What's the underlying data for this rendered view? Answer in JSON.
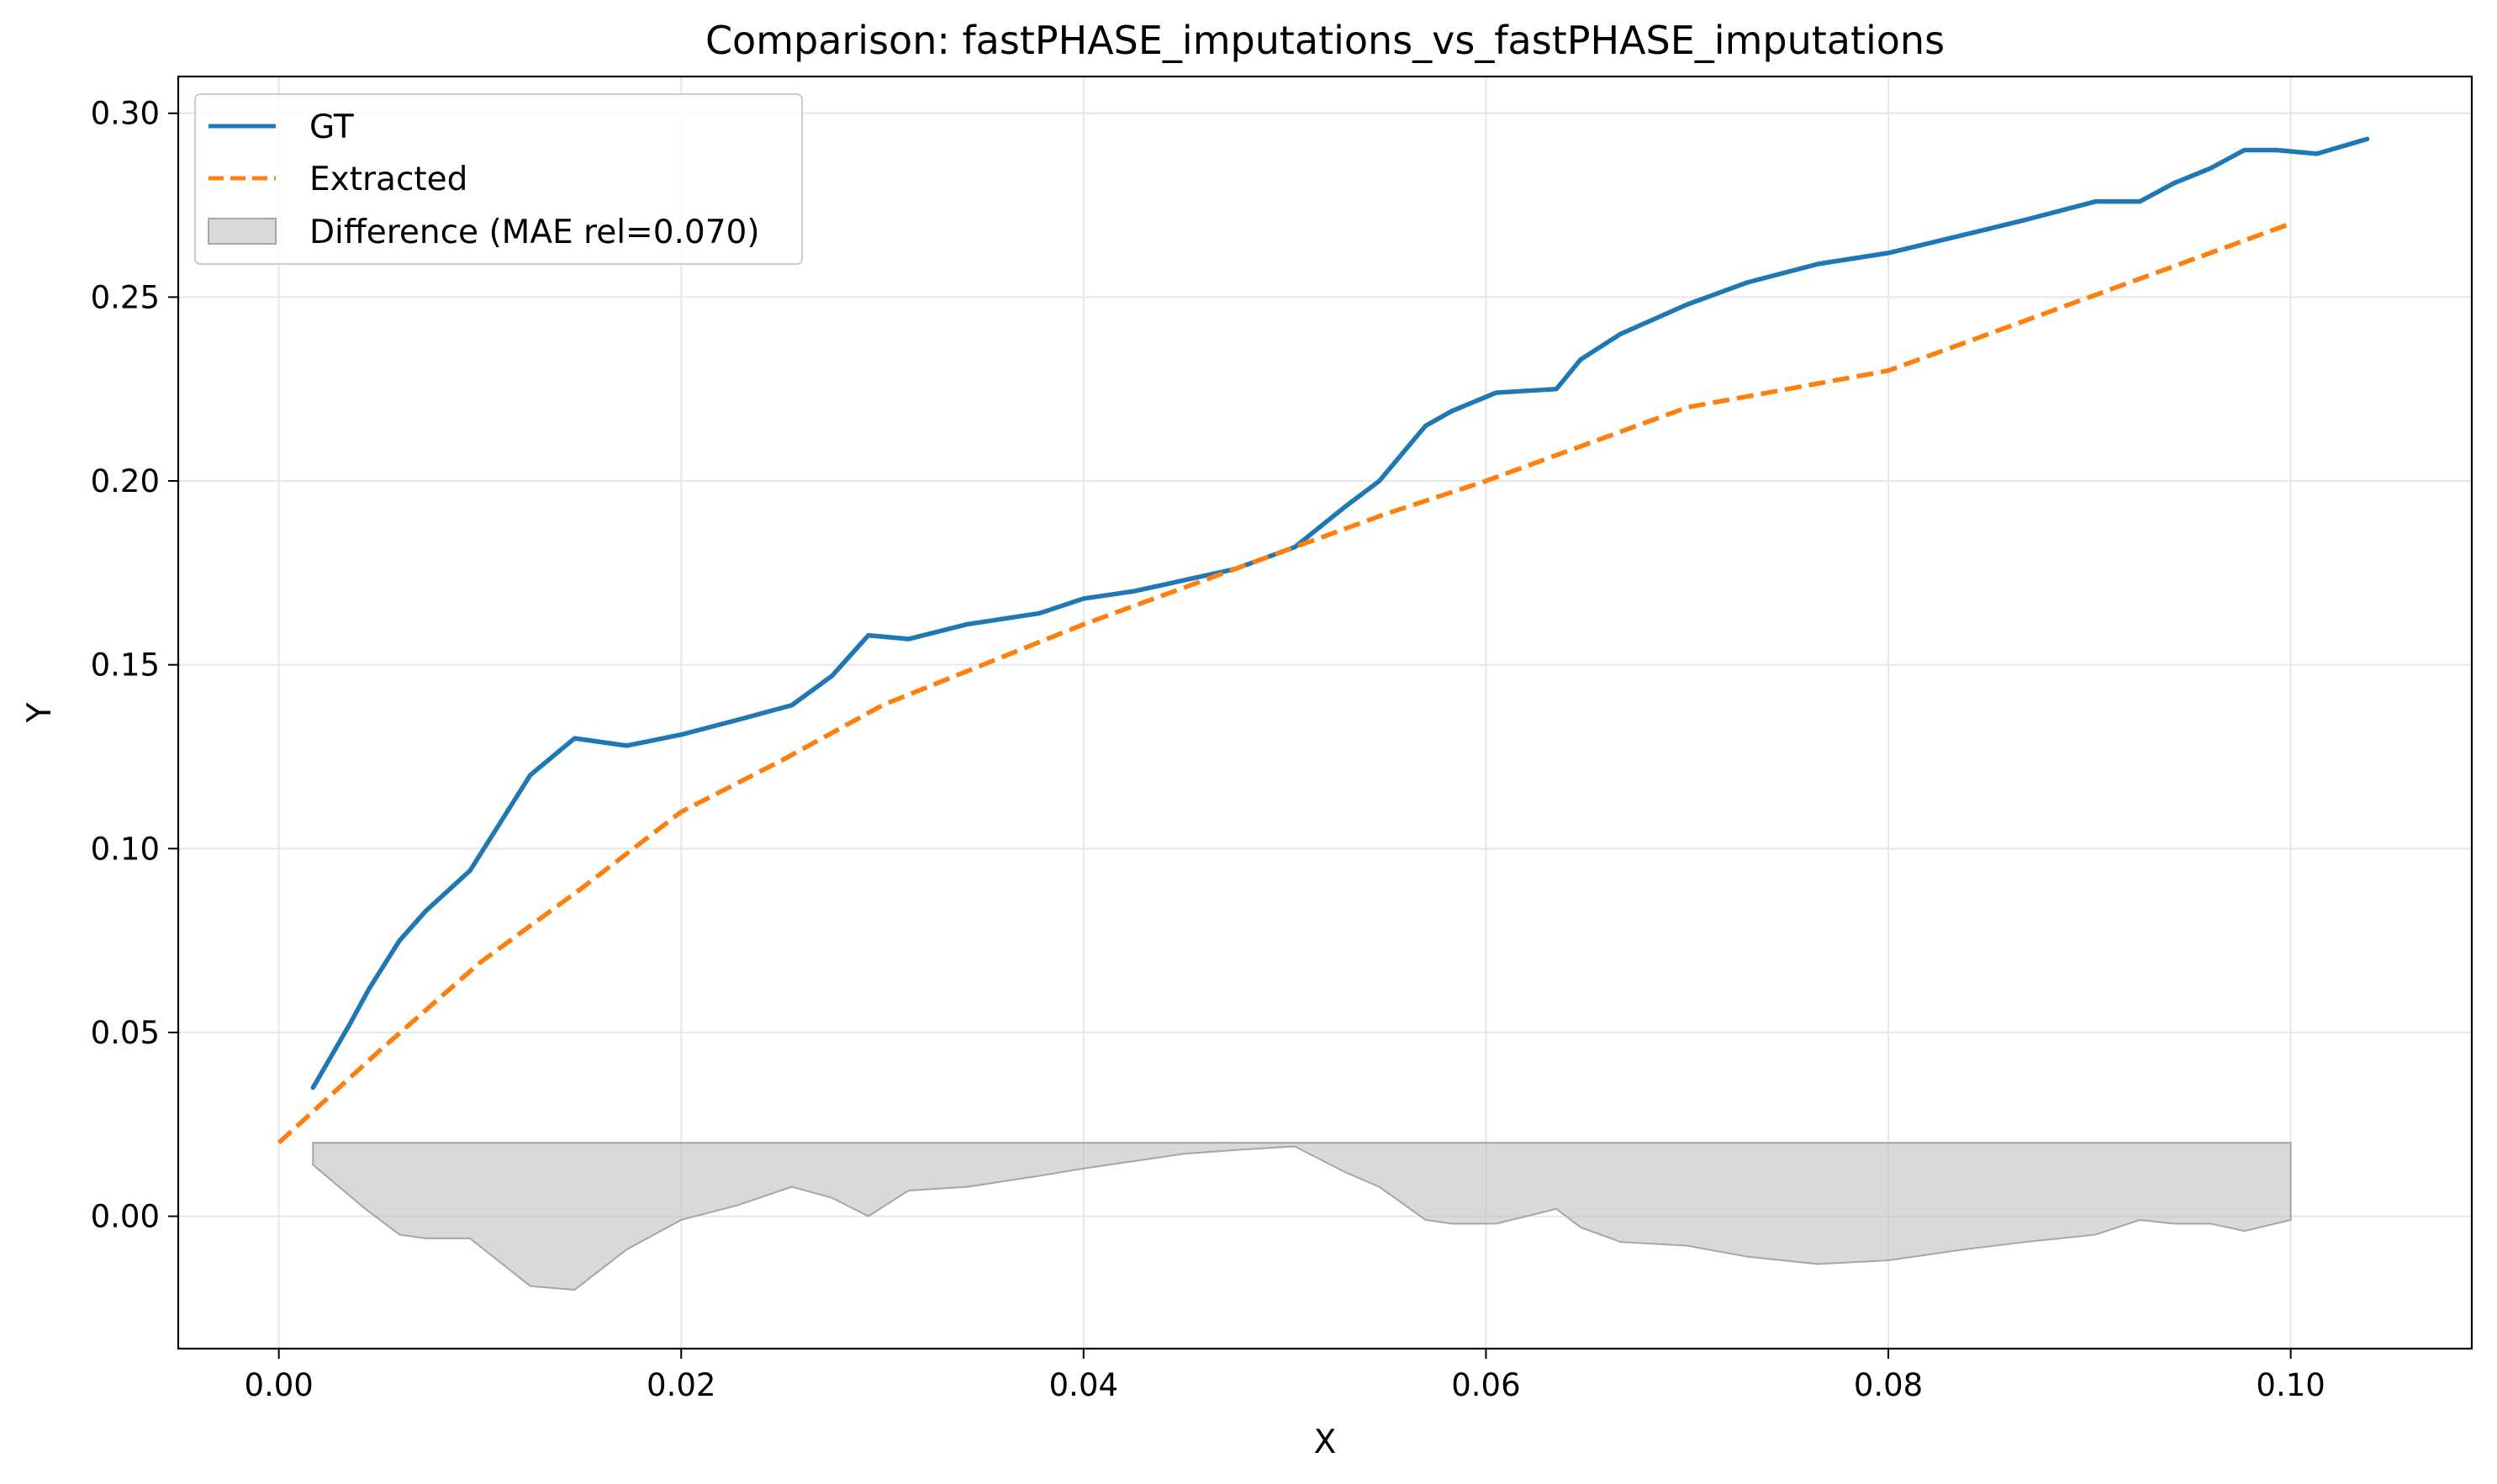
{
  "chart_data": {
    "type": "line",
    "title": "Comparison: fastPHASE_imputations_vs_fastPHASE_imputations",
    "xlabel": "X",
    "ylabel": "Y",
    "xlim": [
      -0.005,
      0.109
    ],
    "ylim": [
      -0.036,
      0.31
    ],
    "xticks": [
      0.0,
      0.02,
      0.04,
      0.06,
      0.08,
      0.1
    ],
    "xtick_labels": [
      "0.00",
      "0.02",
      "0.04",
      "0.06",
      "0.08",
      "0.10"
    ],
    "yticks": [
      0.0,
      0.05,
      0.1,
      0.15,
      0.2,
      0.25,
      0.3
    ],
    "ytick_labels": [
      "0.00",
      "0.05",
      "0.10",
      "0.15",
      "0.20",
      "0.25",
      "0.30"
    ],
    "grid": true,
    "legend_position": "top-left",
    "series": [
      {
        "name": "GT",
        "style": "solid",
        "color": "#1f77b4",
        "x": [
          0.0017,
          0.0035,
          0.0045,
          0.006,
          0.0073,
          0.0095,
          0.011,
          0.0125,
          0.0147,
          0.0173,
          0.02,
          0.0228,
          0.0255,
          0.0275,
          0.0293,
          0.0313,
          0.0342,
          0.0378,
          0.04,
          0.0425,
          0.045,
          0.0475,
          0.0505,
          0.053,
          0.0547,
          0.057,
          0.0583,
          0.0605,
          0.0635,
          0.0647,
          0.0667,
          0.07,
          0.073,
          0.0765,
          0.08,
          0.0838,
          0.0868,
          0.0903,
          0.0925,
          0.0942,
          0.096,
          0.0977,
          0.0993,
          0.1013,
          0.1038
        ],
        "y": [
          0.035,
          0.052,
          0.062,
          0.075,
          0.083,
          0.094,
          0.107,
          0.12,
          0.13,
          0.128,
          0.131,
          0.135,
          0.139,
          0.147,
          0.158,
          0.157,
          0.161,
          0.164,
          0.168,
          0.17,
          0.173,
          0.176,
          0.182,
          0.193,
          0.2,
          0.215,
          0.219,
          0.224,
          0.225,
          0.233,
          0.24,
          0.248,
          0.254,
          0.259,
          0.262,
          0.267,
          0.271,
          0.276,
          0.276,
          0.281,
          0.285,
          0.29,
          0.29,
          0.289,
          0.293
        ]
      },
      {
        "name": "Extracted",
        "style": "dashed",
        "color": "#ff7f0e",
        "x": [
          0.0,
          0.005,
          0.01,
          0.015,
          0.02,
          0.025,
          0.03,
          0.035,
          0.04,
          0.045,
          0.05,
          0.055,
          0.06,
          0.065,
          0.07,
          0.075,
          0.08,
          0.085,
          0.09,
          0.095,
          0.1
        ],
        "y": [
          0.02,
          0.045,
          0.069,
          0.089,
          0.11,
          0.124,
          0.139,
          0.15,
          0.161,
          0.171,
          0.181,
          0.191,
          0.2,
          0.21,
          0.22,
          0.225,
          0.23,
          0.24,
          0.25,
          0.26,
          0.27
        ]
      }
    ],
    "difference_band": {
      "name": "Difference (MAE rel=0.070)",
      "color": "#bfbfbf",
      "baseline": 0.02,
      "x": [
        0.0017,
        0.0043,
        0.006,
        0.0073,
        0.0095,
        0.0125,
        0.0147,
        0.0173,
        0.02,
        0.0228,
        0.0255,
        0.0275,
        0.0293,
        0.0313,
        0.0342,
        0.0378,
        0.04,
        0.0425,
        0.045,
        0.0475,
        0.0505,
        0.053,
        0.0547,
        0.057,
        0.0583,
        0.0605,
        0.0635,
        0.0647,
        0.0667,
        0.07,
        0.073,
        0.0765,
        0.08,
        0.0838,
        0.0868,
        0.0903,
        0.0925,
        0.0942,
        0.096,
        0.0977,
        0.1
      ],
      "y": [
        0.014,
        0.002,
        -0.005,
        -0.006,
        -0.006,
        -0.019,
        -0.02,
        -0.009,
        -0.001,
        0.003,
        0.008,
        0.005,
        0.0,
        0.007,
        0.008,
        0.011,
        0.013,
        0.015,
        0.017,
        0.018,
        0.019,
        0.012,
        0.008,
        -0.001,
        -0.002,
        -0.002,
        0.002,
        -0.003,
        -0.007,
        -0.008,
        -0.011,
        -0.013,
        -0.012,
        -0.009,
        -0.007,
        -0.005,
        -0.001,
        -0.002,
        -0.002,
        -0.004,
        -0.001
      ]
    }
  }
}
